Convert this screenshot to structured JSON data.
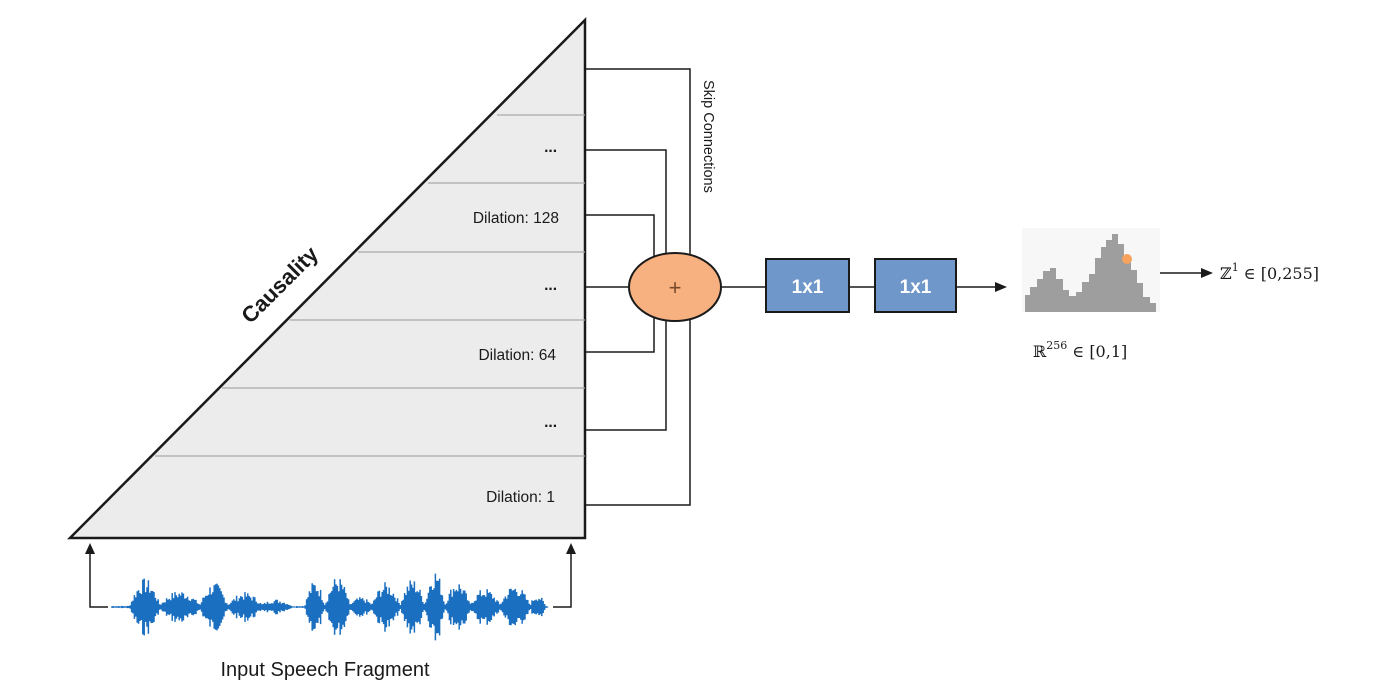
{
  "diagram": {
    "causality_label": "Causality",
    "skip_connections_label": "Skip Connections",
    "layers": [
      {
        "label": "..."
      },
      {
        "label": "Dilation: 128"
      },
      {
        "label": "..."
      },
      {
        "label": "Dilation: 64"
      },
      {
        "label": "..."
      },
      {
        "label": "Dilation: 1"
      }
    ],
    "sum_symbol": "+",
    "conv_blocks": [
      {
        "label": "1x1"
      },
      {
        "label": "1x1"
      }
    ],
    "input_label": "Input Speech Fragment",
    "distribution_label": {
      "base": "ℝ",
      "sup": "256",
      "rest": " ∈ [0,1]"
    },
    "output_label": {
      "base": "ℤ",
      "sup": "1",
      "rest": " ∈ [0,255]"
    }
  },
  "colors": {
    "triangle_fill": "#ececec",
    "sum_fill": "#f7b181",
    "block_fill": "#7097c9",
    "waveform": "#1b6fc0",
    "histogram": "#9e9e9e",
    "histogram_marker": "#f7a35e",
    "line": "#1a1a1a"
  },
  "icons": {
    "waveform": "audio-waveform-icon",
    "histogram": "probability-histogram-icon"
  }
}
